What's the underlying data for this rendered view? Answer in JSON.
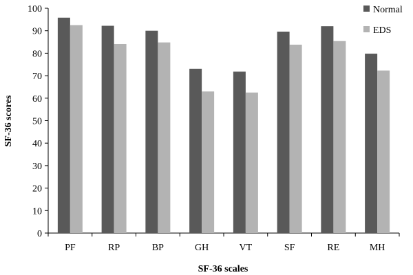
{
  "chart_data": {
    "type": "bar",
    "title": "",
    "xlabel": "SF-36 scales",
    "ylabel": "SF-36 scores",
    "categories": [
      "PF",
      "RP",
      "BP",
      "GH",
      "VT",
      "SF",
      "RE",
      "MH"
    ],
    "ylim": [
      0,
      100
    ],
    "yticks": [
      0,
      10,
      20,
      30,
      40,
      50,
      60,
      70,
      80,
      90,
      100
    ],
    "grid": false,
    "legend_position": "top-right",
    "series": [
      {
        "name": "Normal",
        "color": "#595959",
        "values": [
          95.8,
          92.2,
          90.0,
          73.1,
          71.8,
          89.6,
          92.0,
          79.8
        ]
      },
      {
        "name": "EDS",
        "color": "#b3b3b3",
        "values": [
          92.5,
          84.1,
          84.8,
          63.0,
          62.5,
          83.8,
          85.4,
          72.3
        ]
      }
    ]
  }
}
